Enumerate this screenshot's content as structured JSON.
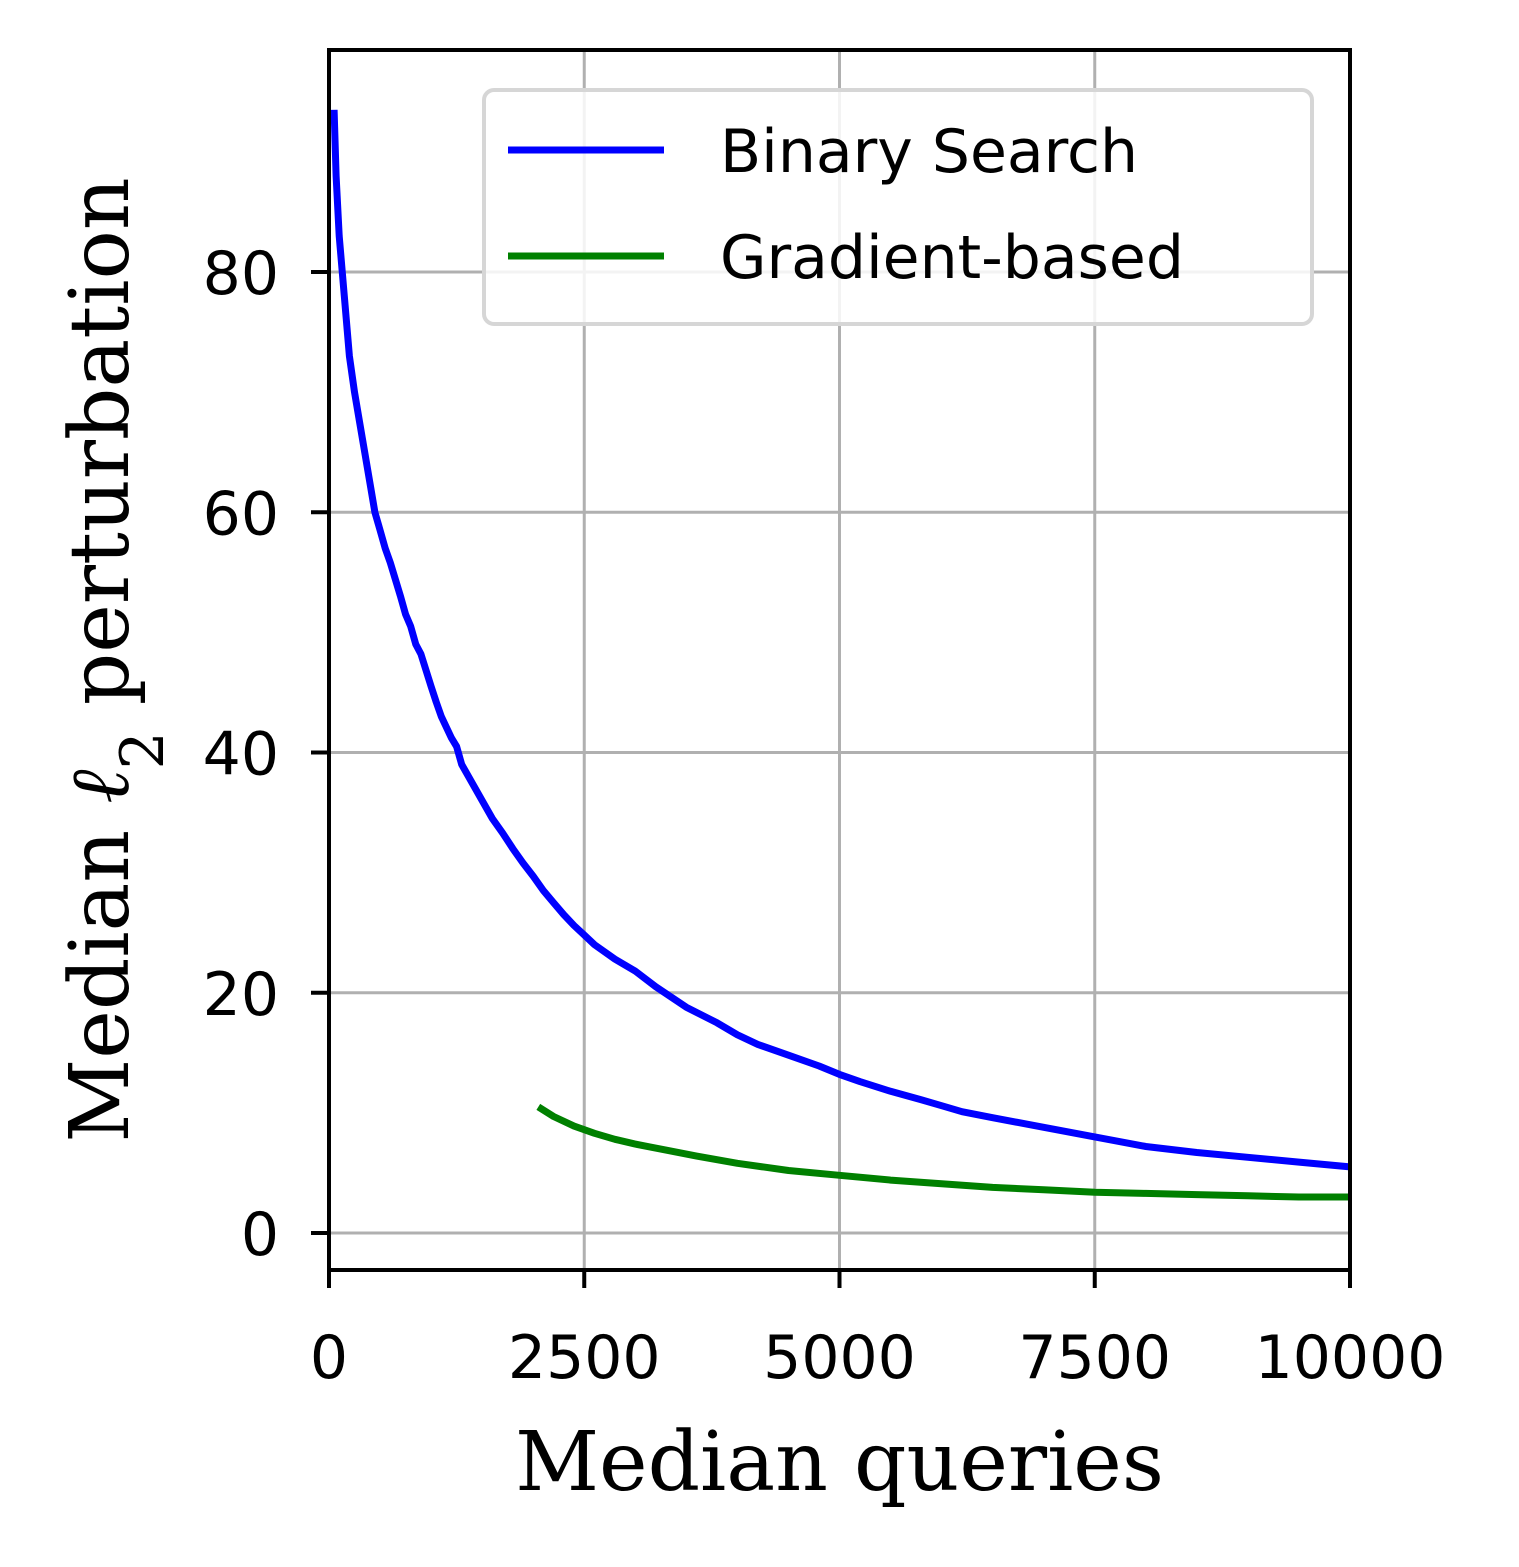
{
  "chart_data": {
    "type": "line",
    "xlabel": "Median queries",
    "ylabel_prefix": "Median ",
    "ylabel_symbol": "ℓ",
    "ylabel_subscript": "2",
    "ylabel_suffix": " perturbation",
    "xlim": [
      0,
      10000
    ],
    "ylim": [
      -3,
      98
    ],
    "xticks": [
      0,
      2500,
      5000,
      7500,
      10000
    ],
    "xtick_labels": [
      "0",
      "2500",
      "5000",
      "7500",
      "10000"
    ],
    "yticks": [
      0,
      20,
      40,
      60,
      80
    ],
    "ytick_labels": [
      "0",
      "20",
      "40",
      "60",
      "80"
    ],
    "grid": true,
    "legend_position": "top-right",
    "series": [
      {
        "name": "Binary Search",
        "color": "#0000ff",
        "x": [
          50,
          70,
          100,
          150,
          200,
          250,
          300,
          350,
          400,
          450,
          500,
          550,
          600,
          700,
          750,
          800,
          850,
          900,
          1000,
          1050,
          1100,
          1200,
          1250,
          1300,
          1400,
          1500,
          1600,
          1700,
          1800,
          1900,
          2000,
          2100,
          2200,
          2300,
          2400,
          2500,
          2600,
          2800,
          3000,
          3200,
          3500,
          3800,
          4000,
          4200,
          4500,
          4800,
          5000,
          5200,
          5500,
          5800,
          6000,
          6200,
          6500,
          7000,
          7500,
          8000,
          8500,
          9000,
          9500,
          10000
        ],
        "y": [
          93.5,
          88,
          83,
          78,
          73,
          70,
          67.5,
          65,
          62.5,
          60,
          58.5,
          57,
          55.8,
          53,
          51.5,
          50.5,
          49,
          48.2,
          45.5,
          44.2,
          43,
          41.2,
          40.5,
          39,
          37.5,
          36,
          34.5,
          33.3,
          32,
          30.8,
          29.7,
          28.5,
          27.5,
          26.5,
          25.6,
          24.8,
          24,
          22.8,
          21.8,
          20.5,
          18.8,
          17.5,
          16.5,
          15.7,
          14.8,
          13.9,
          13.2,
          12.6,
          11.8,
          11.1,
          10.6,
          10.1,
          9.6,
          8.8,
          8.0,
          7.2,
          6.7,
          6.3,
          5.9,
          5.5
        ]
      },
      {
        "name": "Gradient-based",
        "color": "#008000",
        "x": [
          2050,
          2200,
          2400,
          2600,
          2800,
          3000,
          3300,
          3600,
          4000,
          4500,
          5000,
          5500,
          6000,
          6500,
          7000,
          7500,
          8000,
          8500,
          9000,
          9500,
          10000
        ],
        "y": [
          10.5,
          9.7,
          8.9,
          8.3,
          7.8,
          7.4,
          6.9,
          6.4,
          5.8,
          5.2,
          4.8,
          4.4,
          4.1,
          3.8,
          3.6,
          3.4,
          3.3,
          3.2,
          3.1,
          3.0,
          3.0
        ]
      }
    ]
  }
}
